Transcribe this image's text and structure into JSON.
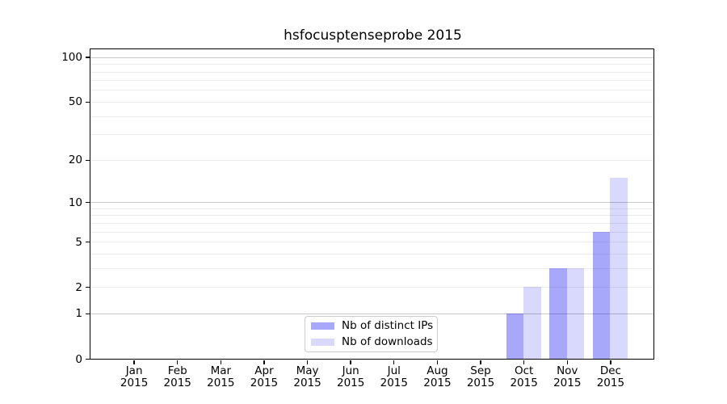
{
  "chart_data": {
    "type": "bar",
    "title": "hsfocusptenseprobe 2015",
    "categories": [
      {
        "month": "Jan",
        "year": "2015"
      },
      {
        "month": "Feb",
        "year": "2015"
      },
      {
        "month": "Mar",
        "year": "2015"
      },
      {
        "month": "Apr",
        "year": "2015"
      },
      {
        "month": "May",
        "year": "2015"
      },
      {
        "month": "Jun",
        "year": "2015"
      },
      {
        "month": "Jul",
        "year": "2015"
      },
      {
        "month": "Aug",
        "year": "2015"
      },
      {
        "month": "Sep",
        "year": "2015"
      },
      {
        "month": "Oct",
        "year": "2015"
      },
      {
        "month": "Nov",
        "year": "2015"
      },
      {
        "month": "Dec",
        "year": "2015"
      }
    ],
    "series": [
      {
        "name": "Nb of distinct IPs",
        "color_hex": "#a9a9fa",
        "fill_rgba": "rgba(0,0,240,0.34)",
        "values": [
          0,
          0,
          0,
          0,
          0,
          0,
          0,
          0,
          0,
          1,
          3,
          6
        ]
      },
      {
        "name": "Nb of downloads",
        "color_hex": "#d9d9fa",
        "fill_rgba": "rgba(0,0,240,0.15)",
        "values": [
          0,
          0,
          0,
          0,
          0,
          0,
          0,
          0,
          0,
          2,
          3,
          15
        ]
      }
    ],
    "xlabel": "",
    "ylabel": "",
    "y_axis": {
      "scale": "log(1+y)",
      "tick_labels": [
        0,
        1,
        2,
        5,
        10,
        20,
        50,
        100
      ],
      "major_gridlines": [
        1,
        10,
        100
      ],
      "minor_gridlines": [
        2,
        3,
        4,
        5,
        6,
        7,
        8,
        9,
        20,
        30,
        40,
        50,
        60,
        70,
        80,
        90
      ],
      "range": [
        0,
        100
      ]
    },
    "legend_position": "bottom-center",
    "grid": true
  },
  "colors": {
    "major_gridline": "#c7c7c7",
    "minor_gridline": "#ececec",
    "axis": "#000000",
    "legend_border": "#cccccc",
    "background": "#ffffff"
  }
}
